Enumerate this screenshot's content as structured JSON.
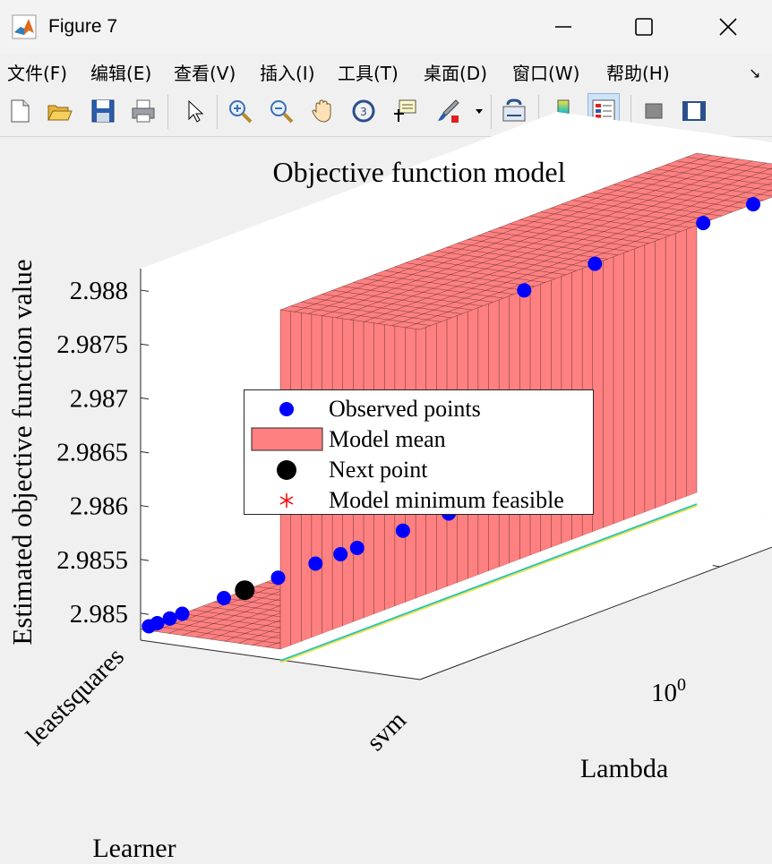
{
  "window": {
    "title": "Figure 7",
    "minimize_icon": "minimize-icon",
    "maximize_icon": "maximize-icon",
    "close_icon": "close-icon"
  },
  "menu": {
    "items": [
      "文件(F)",
      "编辑(E)",
      "查看(V)",
      "插入(I)",
      "工具(T)",
      "桌面(D)",
      "窗口(W)",
      "帮助(H)"
    ]
  },
  "toolbar": {
    "icons": [
      "new-figure-icon",
      "open-file-icon",
      "save-icon",
      "print-icon",
      "pointer-icon",
      "zoom-in-icon",
      "zoom-out-icon",
      "pan-icon",
      "rotate-3d-icon",
      "data-cursor-icon",
      "brush-icon",
      "link-plot-icon",
      "colorbar-icon",
      "legend-icon",
      "hide-plot-tools-icon",
      "show-plot-tools-icon"
    ]
  },
  "chart_data": {
    "type": "surface3d",
    "title": "Objective function model",
    "xlabel": "Learner",
    "ylabel": "Lambda",
    "zlabel": "Estimated objective function value",
    "x_categories": [
      "leastsquares",
      "svm"
    ],
    "y_scale": "log",
    "y_ticks": [
      {
        "label": "10",
        "exponent": "0"
      }
    ],
    "z_ticks": [
      "2.985",
      "2.9855",
      "2.986",
      "2.9865",
      "2.987",
      "2.9875",
      "2.988"
    ],
    "zlim": [
      2.98475,
      2.9882
    ],
    "colors": {
      "observed": "#0000ff",
      "model_mean": "#ff8080",
      "next_point": "#000000",
      "model_minimum": "#ff0000",
      "mesh": "#000000"
    },
    "model_mean": {
      "leastsquares": 2.98485,
      "svm": 2.988
    },
    "observed_points": [
      {
        "learner": "leastsquares",
        "lambda_frac": 0.02,
        "value": 2.98485
      },
      {
        "learner": "leastsquares",
        "lambda_frac": 0.04,
        "value": 2.98485
      },
      {
        "learner": "leastsquares",
        "lambda_frac": 0.07,
        "value": 2.98485
      },
      {
        "learner": "leastsquares",
        "lambda_frac": 0.1,
        "value": 2.98485
      },
      {
        "learner": "leastsquares",
        "lambda_frac": 0.2,
        "value": 2.98485
      },
      {
        "learner": "leastsquares",
        "lambda_frac": 0.33,
        "value": 2.98485
      },
      {
        "learner": "leastsquares",
        "lambda_frac": 0.42,
        "value": 2.98485
      },
      {
        "learner": "leastsquares",
        "lambda_frac": 0.48,
        "value": 2.98485
      },
      {
        "learner": "leastsquares",
        "lambda_frac": 0.52,
        "value": 2.98485
      },
      {
        "learner": "leastsquares",
        "lambda_frac": 0.63,
        "value": 2.98485
      },
      {
        "learner": "leastsquares",
        "lambda_frac": 0.74,
        "value": 2.98485
      },
      {
        "learner": "leastsquares",
        "lambda_frac": 0.8,
        "value": 2.98485
      },
      {
        "learner": "leastsquares",
        "lambda_frac": 0.83,
        "value": 2.98485
      },
      {
        "learner": "svm",
        "lambda_frac": 0.25,
        "value": 2.988
      },
      {
        "learner": "svm",
        "lambda_frac": 0.42,
        "value": 2.988
      },
      {
        "learner": "svm",
        "lambda_frac": 0.68,
        "value": 2.988
      },
      {
        "learner": "svm",
        "lambda_frac": 0.8,
        "value": 2.988
      },
      {
        "learner": "svm",
        "lambda_frac": 0.93,
        "value": 2.988
      }
    ],
    "next_point": {
      "learner": "leastsquares",
      "lambda_frac": 0.25,
      "value": 2.98485
    },
    "legend": {
      "placement": "center",
      "entries": [
        "Observed points",
        "Model mean",
        "Next point",
        "Model minimum feasible"
      ]
    }
  }
}
